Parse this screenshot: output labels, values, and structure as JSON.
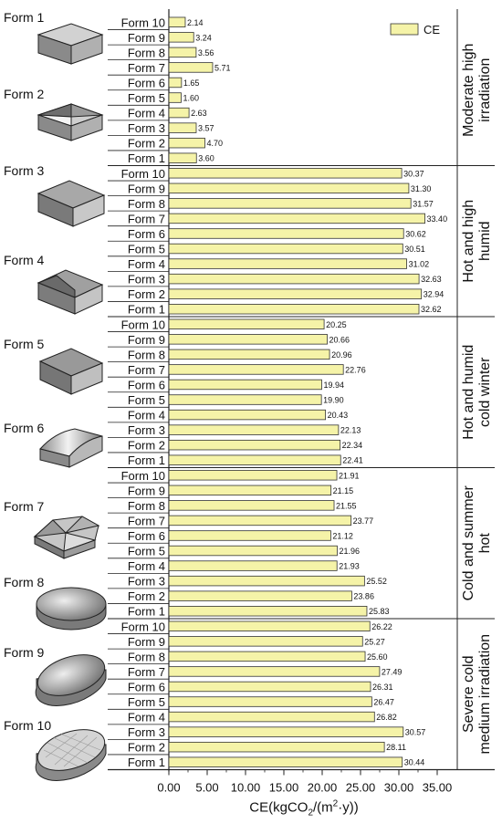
{
  "chart_data": {
    "type": "bar",
    "orientation": "horizontal",
    "xlabel": "CE(kgCO2/(m2·y))",
    "xlabel_parts": {
      "base": "CE(kgCO",
      "sub": "2",
      "mid": "/(m",
      "sup": "2",
      "end": "·y))"
    },
    "xlim": [
      0,
      37.5
    ],
    "xticks": [
      0,
      5,
      10,
      15,
      20,
      25,
      30,
      35
    ],
    "xtick_labels": [
      "0.00",
      "5.00",
      "10.00",
      "15.00",
      "20.00",
      "25.00",
      "30.00",
      "35.00"
    ],
    "legend": {
      "label": "CE",
      "color": "#f5f3a8",
      "position": "top-right"
    },
    "bar_color": "#f5f3a8",
    "bar_edge": "#333333",
    "groups": [
      {
        "name": "Moderate high irradiation",
        "lines": [
          "Moderate high",
          "irradiation"
        ],
        "categories": [
          "Form 10",
          "Form 9",
          "Form 8",
          "Form 7",
          "Form 6",
          "Form 5",
          "Form 4",
          "Form 3",
          "Form 2",
          "Form 1"
        ],
        "values": [
          2.14,
          3.24,
          3.56,
          5.71,
          1.65,
          1.6,
          2.63,
          3.57,
          4.7,
          3.6
        ],
        "value_labels": [
          "2.14",
          "3.24",
          "3.56",
          "5.71",
          "1.65",
          "1.60",
          "2.63",
          "3.57",
          "4.70",
          "3.60"
        ]
      },
      {
        "name": "Hot and high humid",
        "lines": [
          "Hot and high",
          "humid"
        ],
        "categories": [
          "Form 10",
          "Form 9",
          "Form 8",
          "Form 7",
          "Form 6",
          "Form 5",
          "Form 4",
          "Form 3",
          "Form 2",
          "Form 1"
        ],
        "values": [
          30.37,
          31.3,
          31.57,
          33.4,
          30.62,
          30.51,
          31.02,
          32.63,
          32.94,
          32.62
        ],
        "value_labels": [
          "30.37",
          "31.30",
          "31.57",
          "33.40",
          "30.62",
          "30.51",
          "31.02",
          "32.63",
          "32.94",
          "32.62"
        ]
      },
      {
        "name": "Hot and humid cold winter",
        "lines": [
          "Hot and humid",
          "cold winter"
        ],
        "categories": [
          "Form 10",
          "Form 9",
          "Form 8",
          "Form 7",
          "Form 6",
          "Form 5",
          "Form 4",
          "Form 3",
          "Form 2",
          "Form 1"
        ],
        "values": [
          20.25,
          20.66,
          20.96,
          22.76,
          19.94,
          19.9,
          20.43,
          22.13,
          22.34,
          22.41
        ],
        "value_labels": [
          "20.25",
          "20.66",
          "20.96",
          "22.76",
          "19.94",
          "19.90",
          "20.43",
          "22.13",
          "22.34",
          "22.41"
        ]
      },
      {
        "name": "Cold and summer hot",
        "lines": [
          "Cold and summer",
          "hot"
        ],
        "categories": [
          "Form 10",
          "Form 9",
          "Form 8",
          "Form 7",
          "Form 6",
          "Form 5",
          "Form 4",
          "Form 3",
          "Form 2",
          "Form 1"
        ],
        "values": [
          21.91,
          21.15,
          21.55,
          23.77,
          21.12,
          21.96,
          21.93,
          25.52,
          23.86,
          25.83
        ],
        "value_labels": [
          "21.91",
          "21.15",
          "21.55",
          "23.77",
          "21.12",
          "21.96",
          "21.93",
          "25.52",
          "23.86",
          "25.83"
        ]
      },
      {
        "name": "Severe cold medium irradiation",
        "lines": [
          "Severe cold",
          "medium irradiation"
        ],
        "categories": [
          "Form 10",
          "Form 9",
          "Form 8",
          "Form 7",
          "Form 6",
          "Form 5",
          "Form 4",
          "Form 3",
          "Form 2",
          "Form 1"
        ],
        "values": [
          26.22,
          25.27,
          25.6,
          27.49,
          26.31,
          26.47,
          26.82,
          30.57,
          28.11,
          30.44
        ],
        "value_labels": [
          "26.22",
          "25.27",
          "25.60",
          "27.49",
          "26.31",
          "26.47",
          "26.82",
          "30.57",
          "28.11",
          "30.44"
        ]
      }
    ]
  },
  "forms": [
    {
      "label": "Form 1",
      "icon": "flat-roof-box-icon"
    },
    {
      "label": "Form 2",
      "icon": "pyramid-roof-box-icon"
    },
    {
      "label": "Form 3",
      "icon": "offset-box-icon"
    },
    {
      "label": "Form 4",
      "icon": "hip-roof-box-icon"
    },
    {
      "label": "Form 5",
      "icon": "sloped-roof-box-icon"
    },
    {
      "label": "Form 6",
      "icon": "vault-roof-box-icon"
    },
    {
      "label": "Form 7",
      "icon": "polygon-roof-prism-icon"
    },
    {
      "label": "Form 8",
      "icon": "circular-disc-icon"
    },
    {
      "label": "Form 9",
      "icon": "elliptical-disc-icon"
    },
    {
      "label": "Form 10",
      "icon": "faceted-ellipse-icon"
    }
  ]
}
